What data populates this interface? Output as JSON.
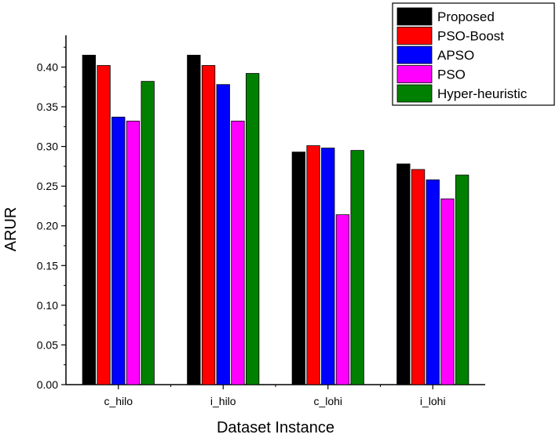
{
  "chart_data": {
    "type": "bar",
    "categories": [
      "c_hilo",
      "i_hilo",
      "c_lohi",
      "i_lohi"
    ],
    "series": [
      {
        "name": "Proposed",
        "color": "#000000",
        "values": [
          0.415,
          0.415,
          0.293,
          0.278
        ]
      },
      {
        "name": "PSO-Boost",
        "color": "#ff0000",
        "values": [
          0.402,
          0.402,
          0.301,
          0.271
        ]
      },
      {
        "name": "APSO",
        "color": "#0000ff",
        "values": [
          0.337,
          0.378,
          0.298,
          0.258
        ]
      },
      {
        "name": "PSO",
        "color": "#ff00ff",
        "values": [
          0.332,
          0.332,
          0.214,
          0.234
        ]
      },
      {
        "name": "Hyper-heuristic",
        "color": "#008000",
        "values": [
          0.382,
          0.392,
          0.295,
          0.264
        ]
      }
    ],
    "xlabel": "Dataset Instance",
    "ylabel": "ARUR",
    "ylim": [
      0.0,
      0.44
    ],
    "yticks": [
      "0.00",
      "0.05",
      "0.10",
      "0.15",
      "0.20",
      "0.25",
      "0.30",
      "0.35",
      "0.40"
    ],
    "grid": false,
    "legend": "top-right"
  }
}
